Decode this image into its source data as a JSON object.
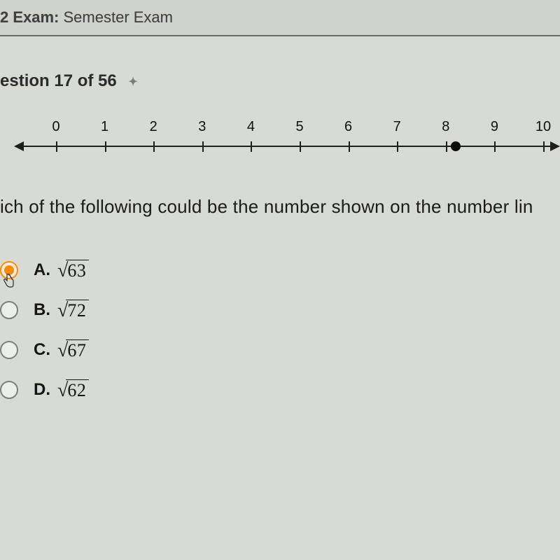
{
  "header": {
    "prefix": "2 Exam:",
    "suffix": " Semester Exam"
  },
  "question": {
    "counter": "estion 17 of 56",
    "prompt": "ich of the following could be the number shown on the number lin"
  },
  "number_line": {
    "min": 0,
    "max": 10,
    "ticks": [
      0,
      1,
      2,
      3,
      4,
      5,
      6,
      7,
      8,
      9,
      10
    ],
    "point_value": 8.2,
    "axis_color": "#1e1e1e",
    "label_fontsize": 20,
    "left_pct": 10,
    "right_pct": 97
  },
  "options": [
    {
      "letter": "A.",
      "radicand": "63",
      "selected": true,
      "cursor": true,
      "accent": "#ff8a00"
    },
    {
      "letter": "B.",
      "radicand": "72",
      "selected": false,
      "cursor": false
    },
    {
      "letter": "C.",
      "radicand": "67",
      "selected": false,
      "cursor": false
    },
    {
      "letter": "D.",
      "radicand": "62",
      "selected": false,
      "cursor": false
    }
  ],
  "colors": {
    "background": "#d8dbd4",
    "header_bg": "#d0d2cc",
    "border": "#6a6a65",
    "accent": "#ff8a00"
  }
}
